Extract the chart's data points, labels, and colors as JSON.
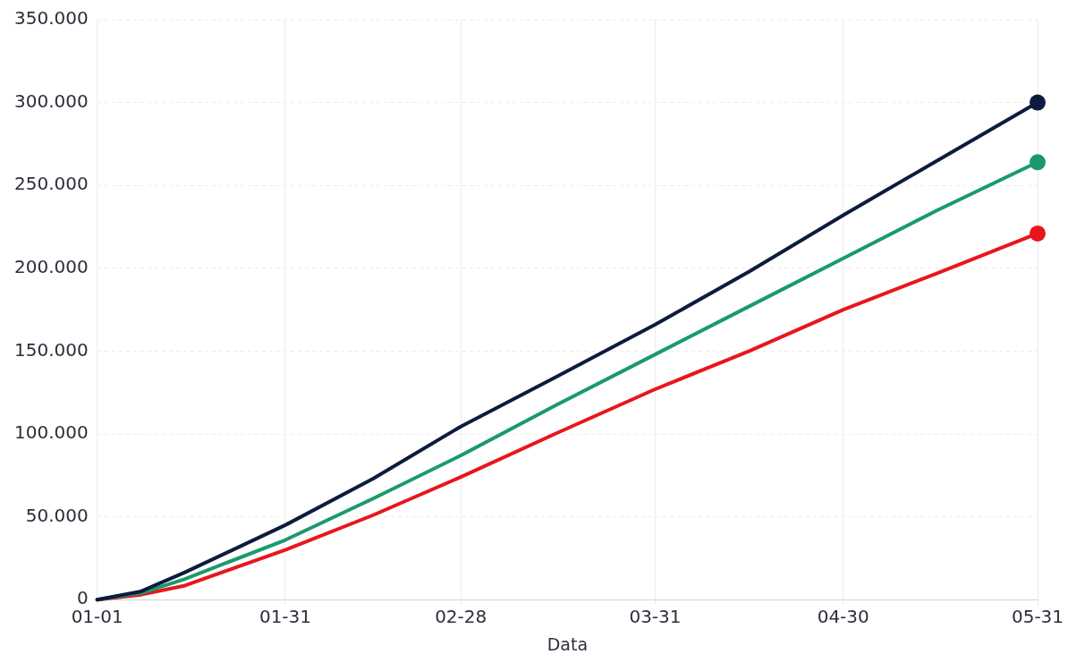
{
  "chart_data": {
    "type": "line",
    "xlabel": "Data",
    "x": [
      "--01-01",
      "--01-08",
      "--01-15",
      "--01-31",
      "--02-14",
      "--02-28",
      "--03-15",
      "--03-31",
      "--04-15",
      "--04-30",
      "--05-15",
      "--05-31"
    ],
    "series": [
      {
        "color": "#0d1b3e",
        "values": [
          0,
          5000,
          16500,
          45000,
          73000,
          104500,
          134000,
          166000,
          198000,
          232000,
          265000,
          300000
        ]
      },
      {
        "color": "#1a9a6c",
        "values": [
          0,
          4000,
          12500,
          36000,
          61000,
          87000,
          117000,
          148000,
          177000,
          206000,
          235000,
          264000
        ]
      },
      {
        "color": "#e8161c",
        "values": [
          0,
          3000,
          8500,
          30000,
          51000,
          74000,
          100000,
          127000,
          150000,
          175000,
          197000,
          221000
        ]
      },
      {
        "type": "scatter",
        "marker": "circle",
        "color": "#0d1b3e",
        "x": [
          "--05-31"
        ],
        "values": [
          300000
        ]
      },
      {
        "type": "scatter",
        "marker": "circle",
        "color": "#1a9a6c",
        "x": [
          "--05-31"
        ],
        "values": [
          264000
        ]
      },
      {
        "type": "scatter",
        "marker": "circle",
        "color": "#e8161c",
        "x": [
          "--05-31"
        ],
        "values": [
          221000
        ]
      }
    ],
    "xlim": [
      "--01-01",
      "--05-31"
    ],
    "xticks": [
      {
        "value": "--01-01",
        "label": "01-01"
      },
      {
        "value": "--01-31",
        "label": "01-31"
      },
      {
        "value": "--02-28",
        "label": "02-28"
      },
      {
        "value": "--03-31",
        "label": "03-31"
      },
      {
        "value": "--04-30",
        "label": "04-30"
      },
      {
        "value": "--05-31",
        "label": "05-31"
      }
    ],
    "ylim": [
      0,
      350000
    ],
    "yticks": [
      0,
      {
        "value": 50000,
        "label": "50.000"
      },
      {
        "value": 100000,
        "label": "100.000"
      },
      {
        "value": 150000,
        "label": "150.000"
      },
      {
        "value": 200000,
        "label": "200.000"
      },
      {
        "value": 250000,
        "label": "250.000"
      },
      {
        "value": 300000,
        "label": "300.000"
      },
      {
        "value": 350000,
        "label": "350.000"
      }
    ],
    "grid": true,
    "legend": false,
    "marker": "none",
    "line_style": "solid"
  }
}
